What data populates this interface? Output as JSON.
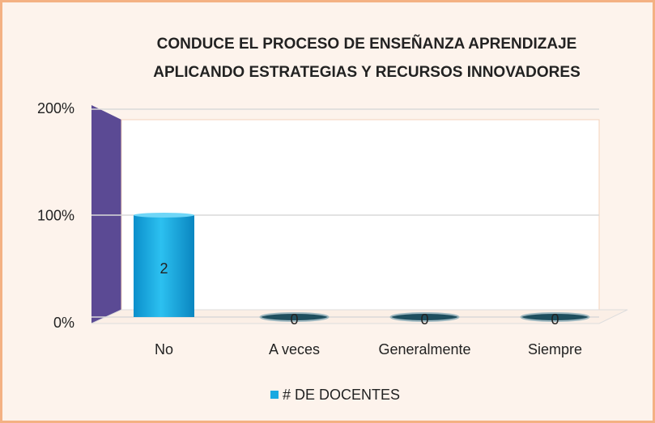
{
  "chart_data": {
    "type": "bar",
    "title": [
      "CONDUCE EL PROCESO DE ENSEÑANZA APRENDIZAJE",
      "APLICANDO ESTRATEGIAS Y RECURSOS INNOVADORES"
    ],
    "categories": [
      "No",
      "A veces",
      "Generalmente",
      "Siempre"
    ],
    "series": [
      {
        "name": "# DE DOCENTES",
        "color": "#17a9e1",
        "values": [
          100,
          0,
          0,
          0
        ],
        "data_labels": [
          2,
          0,
          0,
          0
        ]
      }
    ],
    "ylim": [
      0,
      200
    ],
    "yticks": [
      {
        "value": 0,
        "label": "0%"
      },
      {
        "value": 100,
        "label": "100%"
      },
      {
        "value": 200,
        "label": "200%"
      }
    ],
    "grid": true,
    "legend": "bottom"
  }
}
